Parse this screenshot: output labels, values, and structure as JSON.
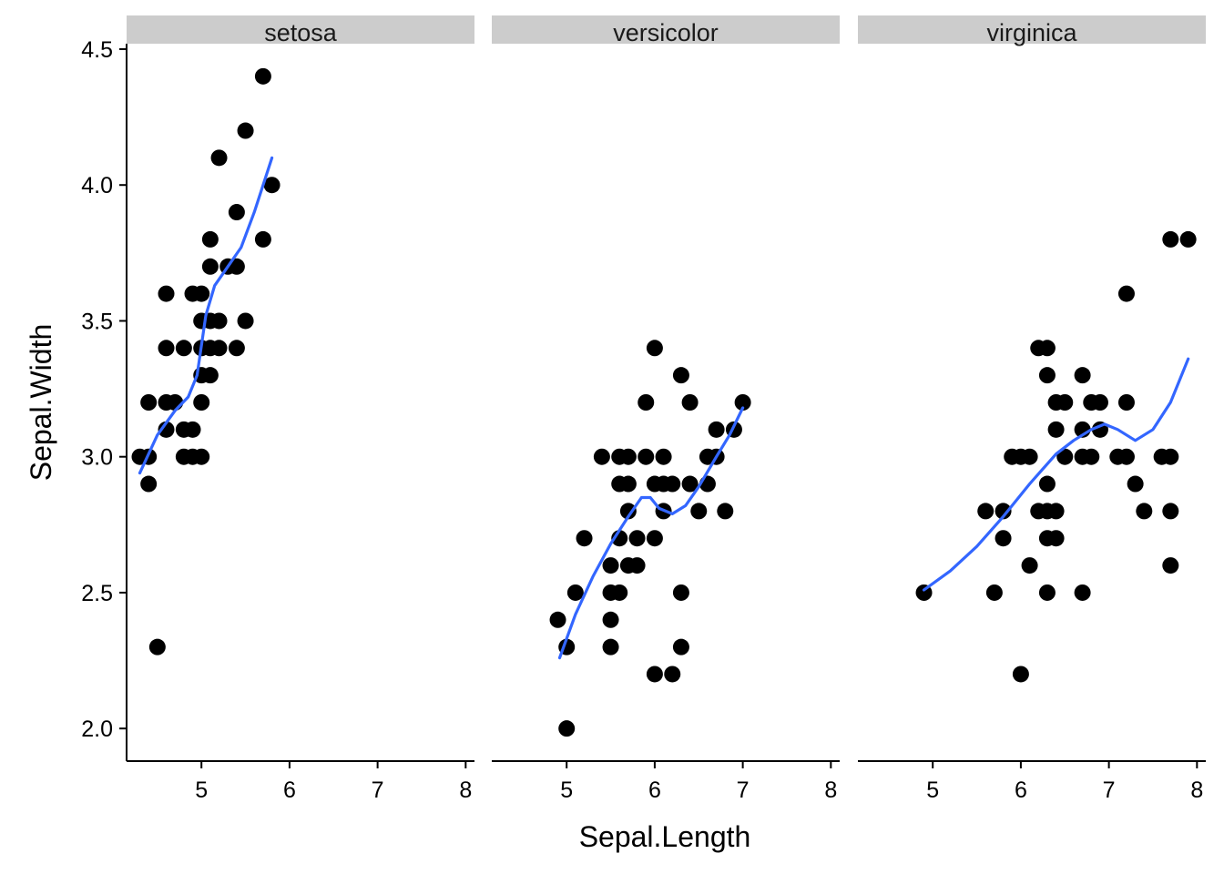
{
  "chart_data": {
    "type": "scatter",
    "facet_by": "Species",
    "xlabel": "Sepal.Length",
    "ylabel": "Sepal.Width",
    "xlim": [
      4.15,
      8.1
    ],
    "ylim": [
      1.88,
      4.52
    ],
    "x_ticks": [
      5,
      6,
      7,
      8
    ],
    "y_ticks": [
      2.0,
      2.5,
      3.0,
      3.5,
      4.0,
      4.5
    ],
    "y_tick_labels": [
      "2.0",
      "2.5",
      "3.0",
      "3.5",
      "4.0",
      "4.5"
    ],
    "grid": false,
    "point_color": "#000000",
    "smooth_color": "#3366ff",
    "strip_color": "#cccccc",
    "panels": [
      {
        "name": "setosa",
        "points": [
          [
            4.3,
            3.0
          ],
          [
            4.4,
            3.0
          ],
          [
            4.4,
            2.9
          ],
          [
            4.4,
            3.2
          ],
          [
            4.5,
            2.3
          ],
          [
            4.6,
            3.1
          ],
          [
            4.6,
            3.2
          ],
          [
            4.6,
            3.4
          ],
          [
            4.6,
            3.6
          ],
          [
            4.7,
            3.2
          ],
          [
            4.8,
            3.0
          ],
          [
            4.8,
            3.1
          ],
          [
            4.8,
            3.4
          ],
          [
            4.9,
            3.0
          ],
          [
            4.9,
            3.1
          ],
          [
            4.9,
            3.6
          ],
          [
            5.0,
            3.0
          ],
          [
            5.0,
            3.2
          ],
          [
            5.0,
            3.3
          ],
          [
            5.0,
            3.4
          ],
          [
            5.0,
            3.5
          ],
          [
            5.0,
            3.6
          ],
          [
            5.1,
            3.3
          ],
          [
            5.1,
            3.4
          ],
          [
            5.1,
            3.5
          ],
          [
            5.1,
            3.7
          ],
          [
            5.1,
            3.8
          ],
          [
            5.2,
            3.4
          ],
          [
            5.2,
            3.5
          ],
          [
            5.2,
            4.1
          ],
          [
            5.3,
            3.7
          ],
          [
            5.4,
            3.4
          ],
          [
            5.4,
            3.7
          ],
          [
            5.4,
            3.9
          ],
          [
            5.5,
            3.5
          ],
          [
            5.5,
            4.2
          ],
          [
            5.7,
            3.8
          ],
          [
            5.7,
            4.4
          ],
          [
            5.8,
            4.0
          ]
        ],
        "smooth": [
          [
            4.3,
            2.94
          ],
          [
            4.5,
            3.08
          ],
          [
            4.7,
            3.17
          ],
          [
            4.85,
            3.22
          ],
          [
            4.95,
            3.3
          ],
          [
            5.05,
            3.52
          ],
          [
            5.15,
            3.63
          ],
          [
            5.3,
            3.7
          ],
          [
            5.45,
            3.77
          ],
          [
            5.6,
            3.9
          ],
          [
            5.7,
            4.0
          ],
          [
            5.8,
            4.1
          ]
        ]
      },
      {
        "name": "versicolor",
        "points": [
          [
            4.9,
            2.4
          ],
          [
            5.0,
            2.0
          ],
          [
            5.0,
            2.3
          ],
          [
            5.1,
            2.5
          ],
          [
            5.2,
            2.7
          ],
          [
            5.4,
            3.0
          ],
          [
            5.5,
            2.3
          ],
          [
            5.5,
            2.4
          ],
          [
            5.5,
            2.5
          ],
          [
            5.5,
            2.6
          ],
          [
            5.6,
            2.5
          ],
          [
            5.6,
            2.7
          ],
          [
            5.6,
            2.9
          ],
          [
            5.6,
            3.0
          ],
          [
            5.7,
            2.6
          ],
          [
            5.7,
            2.8
          ],
          [
            5.7,
            2.9
          ],
          [
            5.7,
            3.0
          ],
          [
            5.8,
            2.6
          ],
          [
            5.8,
            2.7
          ],
          [
            5.9,
            3.0
          ],
          [
            5.9,
            3.2
          ],
          [
            6.0,
            2.2
          ],
          [
            6.0,
            2.7
          ],
          [
            6.0,
            2.9
          ],
          [
            6.0,
            3.4
          ],
          [
            6.1,
            2.8
          ],
          [
            6.1,
            2.9
          ],
          [
            6.1,
            3.0
          ],
          [
            6.2,
            2.2
          ],
          [
            6.2,
            2.9
          ],
          [
            6.3,
            2.3
          ],
          [
            6.3,
            2.5
          ],
          [
            6.3,
            3.3
          ],
          [
            6.4,
            2.9
          ],
          [
            6.4,
            3.2
          ],
          [
            6.5,
            2.8
          ],
          [
            6.6,
            2.9
          ],
          [
            6.6,
            3.0
          ],
          [
            6.7,
            3.0
          ],
          [
            6.7,
            3.1
          ],
          [
            6.8,
            2.8
          ],
          [
            6.9,
            3.1
          ],
          [
            7.0,
            3.2
          ]
        ],
        "smooth": [
          [
            4.92,
            2.26
          ],
          [
            5.1,
            2.42
          ],
          [
            5.3,
            2.56
          ],
          [
            5.5,
            2.68
          ],
          [
            5.7,
            2.78
          ],
          [
            5.85,
            2.85
          ],
          [
            5.95,
            2.85
          ],
          [
            6.05,
            2.81
          ],
          [
            6.2,
            2.79
          ],
          [
            6.35,
            2.82
          ],
          [
            6.5,
            2.89
          ],
          [
            6.7,
            3.0
          ],
          [
            6.85,
            3.08
          ],
          [
            7.0,
            3.18
          ]
        ]
      },
      {
        "name": "virginica",
        "points": [
          [
            4.9,
            2.5
          ],
          [
            5.6,
            2.8
          ],
          [
            5.7,
            2.5
          ],
          [
            5.8,
            2.7
          ],
          [
            5.8,
            2.8
          ],
          [
            5.9,
            3.0
          ],
          [
            6.0,
            2.2
          ],
          [
            6.0,
            3.0
          ],
          [
            6.1,
            2.6
          ],
          [
            6.1,
            3.0
          ],
          [
            6.2,
            2.8
          ],
          [
            6.2,
            3.4
          ],
          [
            6.3,
            2.5
          ],
          [
            6.3,
            2.7
          ],
          [
            6.3,
            2.8
          ],
          [
            6.3,
            2.9
          ],
          [
            6.3,
            3.3
          ],
          [
            6.3,
            3.4
          ],
          [
            6.4,
            2.7
          ],
          [
            6.4,
            2.8
          ],
          [
            6.4,
            3.1
          ],
          [
            6.4,
            3.2
          ],
          [
            6.5,
            3.0
          ],
          [
            6.5,
            3.2
          ],
          [
            6.7,
            2.5
          ],
          [
            6.7,
            3.0
          ],
          [
            6.7,
            3.1
          ],
          [
            6.7,
            3.3
          ],
          [
            6.8,
            3.0
          ],
          [
            6.8,
            3.2
          ],
          [
            6.9,
            3.1
          ],
          [
            6.9,
            3.2
          ],
          [
            7.1,
            3.0
          ],
          [
            7.2,
            3.0
          ],
          [
            7.2,
            3.2
          ],
          [
            7.2,
            3.6
          ],
          [
            7.3,
            2.9
          ],
          [
            7.4,
            2.8
          ],
          [
            7.6,
            3.0
          ],
          [
            7.7,
            2.6
          ],
          [
            7.7,
            2.8
          ],
          [
            7.7,
            3.0
          ],
          [
            7.7,
            3.8
          ],
          [
            7.9,
            3.8
          ]
        ],
        "smooth": [
          [
            4.9,
            2.51
          ],
          [
            5.2,
            2.58
          ],
          [
            5.5,
            2.67
          ],
          [
            5.8,
            2.78
          ],
          [
            6.1,
            2.9
          ],
          [
            6.4,
            3.01
          ],
          [
            6.6,
            3.06
          ],
          [
            6.8,
            3.1
          ],
          [
            6.95,
            3.12
          ],
          [
            7.1,
            3.1
          ],
          [
            7.3,
            3.06
          ],
          [
            7.5,
            3.1
          ],
          [
            7.7,
            3.2
          ],
          [
            7.9,
            3.36
          ]
        ]
      }
    ]
  }
}
